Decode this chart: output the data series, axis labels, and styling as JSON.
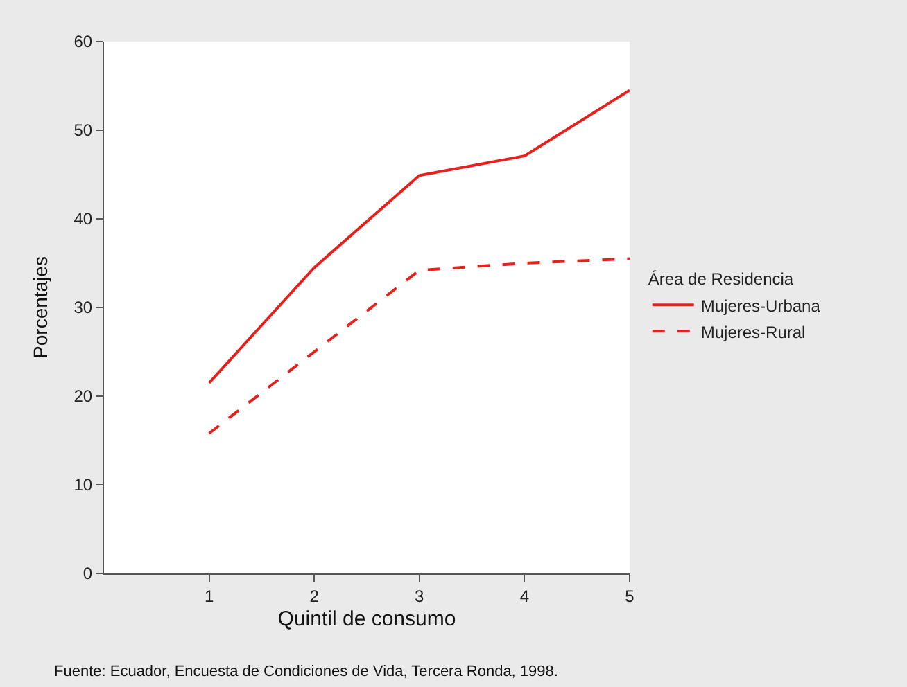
{
  "chart_data": {
    "type": "line",
    "xlabel": "Quintil de consumo",
    "ylabel": "Porcentajes",
    "legend_title": "Área de Residencia",
    "x": [
      1,
      2,
      3,
      4,
      5
    ],
    "series": [
      {
        "name": "Mujeres-Urbana",
        "color": "#e8201c",
        "values": [
          21.5,
          34.5,
          44.9,
          47.1,
          54.5
        ],
        "line_style": "solid"
      },
      {
        "name": "Mujeres-Rural",
        "color": "#e8201c",
        "values": [
          15.8,
          25,
          34.2,
          35,
          35.5
        ],
        "line_style": "dashed"
      }
    ],
    "xlim": [
      0,
      5
    ],
    "xticks": [
      1,
      2,
      3,
      4,
      5
    ],
    "ylim": [
      0,
      60
    ],
    "yticks": [
      0,
      10,
      20,
      30,
      40,
      50,
      60
    ],
    "legend": "right",
    "marker": "none",
    "annotations": [
      "Fuente: Ecuador, Encuesta de Condiciones de Vida, Tercera Ronda, 1998."
    ]
  }
}
